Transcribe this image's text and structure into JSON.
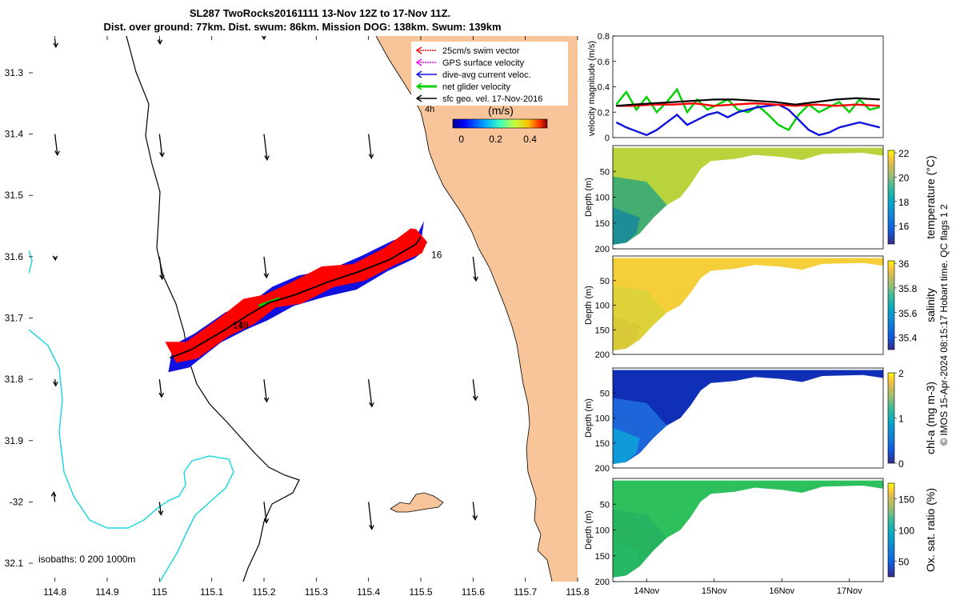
{
  "colors": {
    "land": "#f8c49a",
    "isobath_0": "#000000",
    "isobath_200": "#000000",
    "isobath_1000": "#22d6dd",
    "swim": "#ff0000",
    "gps": "#ff00ff",
    "dive_avg": "#1010e0",
    "net": "#00d000",
    "geo": "#000000"
  },
  "title": {
    "line1": "SL287 TwoRocks20161111 13-Nov 12Z to 17-Nov 11Z.",
    "line2": "Dist. over ground: 77km. Dist. swum: 86km. Mission DOG: 138km. Swum: 139km"
  },
  "map": {
    "xlim": [
      114.75,
      115.8
    ],
    "ylim": [
      -32.13,
      -31.24
    ],
    "x_ticks": [
      114.8,
      114.9,
      115,
      115.1,
      115.2,
      115.3,
      115.4,
      115.5,
      115.6,
      115.7,
      115.8
    ],
    "x_tick_labels": [
      "114.8",
      "114.9",
      "115",
      "115.1",
      "115.2",
      "115.3",
      "115.4",
      "115.5",
      "115.6",
      "115.7",
      "115.8"
    ],
    "y_ticks": [
      -31.3,
      -31.4,
      -31.5,
      -31.6,
      -31.7,
      -31.8,
      -31.9,
      -32.0,
      -32.1
    ],
    "y_tick_labels": [
      "31.3",
      "31.4",
      "31.5",
      "31.6",
      "31.7",
      "31.8",
      "31.9",
      "-32",
      "32.1"
    ],
    "legend": [
      {
        "label": "25cm/s swim vector",
        "color": "#ff0000"
      },
      {
        "label": "GPS surface velocity",
        "color": "#ff00ff"
      },
      {
        "label": "dive-avg current veloc.",
        "color": "#1010e0"
      },
      {
        "label": "net glider velocity",
        "color": "#00d000"
      },
      {
        "label": "sfc geo. vel. 17-Nov-2016",
        "color": "#000000"
      }
    ],
    "legend_marker": "4h",
    "colorbar": {
      "units": "(m/s)",
      "ticks": [
        0,
        0.2,
        0.4
      ],
      "tick_labels": [
        "0",
        "0.2",
        "0.4"
      ],
      "range": [
        -0.05,
        0.5
      ]
    },
    "isobaths_label": "isobaths: 0   200  1000m",
    "track": {
      "lon": [
        115.02,
        115.06,
        115.12,
        115.17,
        115.21,
        115.26,
        115.32,
        115.38,
        115.44,
        115.49,
        115.5
      ],
      "lat": [
        -31.765,
        -31.752,
        -31.722,
        -31.695,
        -31.675,
        -31.662,
        -31.642,
        -31.625,
        -31.605,
        -31.58,
        -31.568
      ],
      "day_marks": [
        {
          "label": "14",
          "lon": 115.14,
          "lat": -31.712
        },
        {
          "label": "18",
          "lon": 115.15,
          "lat": -31.712
        },
        {
          "label": "16",
          "lon": 115.52,
          "lat": -31.597
        }
      ]
    },
    "geo_arrow_lons": [
      114.8,
      115.0,
      115.2,
      115.4,
      115.6
    ],
    "geo_arrow_lats": [
      -31.3,
      -31.4,
      -31.6,
      -31.8,
      -32.0
    ]
  },
  "velocity_plot": {
    "ylabel": "velocity magnitude (m/s)",
    "ylim": [
      0,
      0.8
    ],
    "yticks": [
      0,
      0.2,
      0.4,
      0.6,
      0.8
    ],
    "ytick_labels": [
      "0",
      "0.2",
      "0.4",
      "0.6",
      "0.8"
    ],
    "series": [
      {
        "name": "net glider velocity",
        "color": "#00d000",
        "t": [
          13.55,
          13.7,
          13.85,
          14.0,
          14.15,
          14.3,
          14.45,
          14.6,
          14.75,
          14.9,
          15.05,
          15.2,
          15.35,
          15.5,
          15.65,
          15.8,
          15.95,
          16.1,
          16.25,
          16.4,
          16.55,
          16.7,
          16.85,
          17.0,
          17.15,
          17.3,
          17.45
        ],
        "v": [
          0.26,
          0.36,
          0.22,
          0.32,
          0.2,
          0.28,
          0.38,
          0.2,
          0.3,
          0.22,
          0.26,
          0.3,
          0.22,
          0.2,
          0.25,
          0.18,
          0.1,
          0.06,
          0.18,
          0.26,
          0.2,
          0.24,
          0.28,
          0.2,
          0.3,
          0.22,
          0.24
        ]
      },
      {
        "name": "dive-avg current veloc.",
        "color": "#1010e0",
        "t": [
          13.55,
          13.7,
          13.85,
          14.0,
          14.15,
          14.3,
          14.45,
          14.6,
          14.75,
          14.9,
          15.05,
          15.2,
          15.35,
          15.5,
          15.65,
          15.8,
          15.95,
          16.1,
          16.25,
          16.4,
          16.55,
          16.7,
          16.85,
          17.0,
          17.15,
          17.3,
          17.45
        ],
        "v": [
          0.12,
          0.08,
          0.05,
          0.02,
          0.06,
          0.12,
          0.18,
          0.1,
          0.14,
          0.18,
          0.2,
          0.16,
          0.2,
          0.22,
          0.24,
          0.25,
          0.26,
          0.22,
          0.14,
          0.06,
          0.02,
          0.04,
          0.08,
          0.1,
          0.12,
          0.1,
          0.08
        ]
      },
      {
        "name": "25cm/s swim vector",
        "color": "#ff0000",
        "t": [
          13.55,
          13.8,
          14.1,
          14.4,
          14.7,
          15.0,
          15.3,
          15.6,
          15.9,
          16.2,
          16.5,
          16.8,
          17.1,
          17.45
        ],
        "v": [
          0.25,
          0.25,
          0.26,
          0.26,
          0.27,
          0.25,
          0.26,
          0.27,
          0.26,
          0.25,
          0.26,
          0.25,
          0.26,
          0.25
        ]
      },
      {
        "name": "sfc geo. vel.",
        "color": "#000000",
        "t": [
          13.55,
          13.8,
          14.1,
          14.4,
          14.7,
          15.0,
          15.3,
          15.6,
          15.9,
          16.2,
          16.5,
          16.8,
          17.1,
          17.45
        ],
        "v": [
          0.25,
          0.26,
          0.27,
          0.28,
          0.29,
          0.3,
          0.3,
          0.29,
          0.28,
          0.26,
          0.28,
          0.3,
          0.31,
          0.3
        ]
      }
    ]
  },
  "sections": [
    {
      "name": "temperature",
      "ylabel": "Depth (m)",
      "clabel": "temperature (°C)",
      "ylim": [
        0,
        200
      ],
      "yticks": [
        50,
        100,
        150,
        200
      ],
      "ytick_labels": [
        "50",
        "100",
        "150",
        "200"
      ],
      "cticks": [
        16,
        18,
        20,
        22
      ],
      "ctick_labels": [
        "16",
        "18",
        "20",
        "22"
      ],
      "crange": [
        14.5,
        22.2
      ],
      "surface": 20.0,
      "deep": 15.5,
      "colormap": "parula"
    },
    {
      "name": "salinity",
      "ylabel": "Depth (m)",
      "clabel": "salinity",
      "ylim": [
        0,
        200
      ],
      "yticks": [
        50,
        100,
        150,
        200
      ],
      "ytick_labels": [
        "50",
        "100",
        "150",
        "200"
      ],
      "cticks": [
        35.4,
        35.6,
        35.8,
        36
      ],
      "ctick_labels": [
        "35.4",
        "35.6",
        "35.8",
        "36"
      ],
      "crange": [
        35.3,
        36.02
      ],
      "surface": 35.83,
      "deep": 35.75,
      "colormap": "parula"
    },
    {
      "name": "chl-a",
      "ylabel": "Depth (m)",
      "clabel": "chl-a (mg m-3)",
      "ylim": [
        0,
        200
      ],
      "yticks": [
        50,
        100,
        150,
        200
      ],
      "ytick_labels": [
        "50",
        "100",
        "150",
        "200"
      ],
      "cticks": [
        0,
        1,
        2
      ],
      "ctick_labels": [
        "0",
        "1",
        "2"
      ],
      "crange": [
        0,
        2
      ],
      "surface": 0.15,
      "deep": 0.05,
      "colormap": "parula"
    },
    {
      "name": "oxygen",
      "ylabel": "Depth (m)",
      "clabel": "Ox. sat. ratio (%)",
      "ylim": [
        0,
        200
      ],
      "yticks": [
        50,
        100,
        150,
        200
      ],
      "ytick_labels": [
        "50",
        "100",
        "150",
        "200"
      ],
      "cticks": [
        50,
        100,
        150
      ],
      "ctick_labels": [
        "50",
        "100",
        "150"
      ],
      "crange": [
        25,
        175
      ],
      "surface": 105,
      "deep": 100,
      "colormap": "parula"
    }
  ],
  "time_axis": {
    "tlim": [
      13.5,
      17.5
    ],
    "ticks": [
      14,
      15,
      16,
      17
    ],
    "tick_labels": [
      "14Nov",
      "15Nov",
      "16Nov",
      "17Nov"
    ]
  },
  "credit": "© IMOS 15-Apr-2024 08:15:17 Hobart time. QC flags 1  2"
}
